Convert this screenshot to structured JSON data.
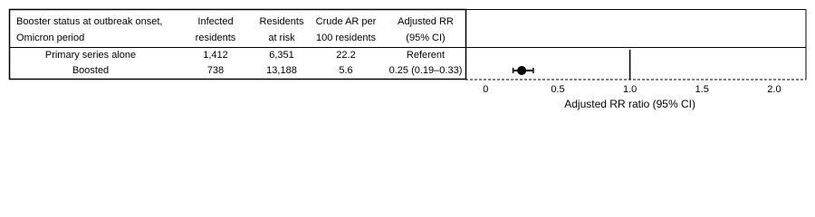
{
  "table": {
    "header": [
      [
        "Booster status at outbreak onset,",
        "Omicron period"
      ],
      [
        "Infected",
        "residents"
      ],
      [
        "Residents",
        "at risk"
      ],
      [
        "Crude AR per",
        "100 residents"
      ],
      [
        "Adjusted RR",
        "(95% CI)"
      ]
    ],
    "rows": [
      [
        "Primary series alone",
        "1,412",
        "6,351",
        "22.2",
        "Referent"
      ],
      [
        "Boosted",
        "738",
        "13,188",
        "5.6",
        "0.25 (0.19–0.33)"
      ]
    ]
  },
  "chart_data": {
    "type": "forest",
    "x_label": "Adjusted RR ratio (95% CI)",
    "estimates": [
      null,
      0.25
    ],
    "ci_lower": [
      null,
      0.19
    ],
    "ci_upper": [
      null,
      0.33
    ],
    "reference_line": 1,
    "color": "#000000",
    "xlim": [
      -0.14,
      2.22
    ],
    "xticks": [
      0,
      0.5,
      {
        "value": 1,
        "label": "1.0"
      },
      1.5,
      {
        "value": 2,
        "label": "2.0"
      }
    ]
  }
}
